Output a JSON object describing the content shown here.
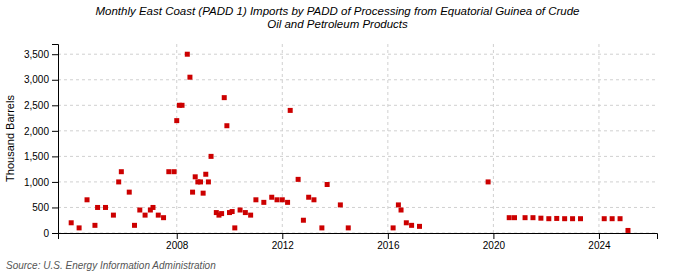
{
  "chart_data": {
    "type": "scatter",
    "title": "Monthly East Coast (PADD 1) Imports by PADD of Processing from Equatorial Guinea of Crude\nOil and Petroleum Products",
    "ylabel": "Thousand Barrels",
    "source": "Source: U.S. Energy Information Administration",
    "color": "#cc0000",
    "marker": "square",
    "grid": true,
    "xlim": [
      2003.5,
      2026.2
    ],
    "ylim": [
      0,
      3700
    ],
    "xticks": [
      2008,
      2012,
      2016,
      2020,
      2024
    ],
    "yticks": [
      0,
      500,
      {
        "value": 1000,
        "label": "1,000"
      },
      {
        "value": 1500,
        "label": "1,500"
      },
      {
        "value": 2000,
        "label": "2,000"
      },
      {
        "value": 2500,
        "label": "2,500"
      },
      {
        "value": 3000,
        "label": "3,000"
      },
      {
        "value": 3500,
        "label": "3,500"
      }
    ],
    "x": [
      2004.0,
      2004.3,
      2004.6,
      2004.9,
      2005.0,
      2005.3,
      2005.6,
      2005.8,
      2005.9,
      2006.2,
      2006.4,
      2006.6,
      2006.8,
      2007.0,
      2007.1,
      2007.3,
      2007.5,
      2007.7,
      2007.9,
      2008.0,
      2008.1,
      2008.2,
      2008.4,
      2008.5,
      2008.6,
      2008.7,
      2008.8,
      2008.9,
      2009.0,
      2009.1,
      2009.2,
      2009.3,
      2009.5,
      2009.6,
      2009.7,
      2009.8,
      2009.9,
      2010.0,
      2010.1,
      2010.2,
      2010.4,
      2010.6,
      2010.8,
      2011.0,
      2011.3,
      2011.6,
      2011.8,
      2012.0,
      2012.2,
      2012.3,
      2012.6,
      2012.8,
      2013.0,
      2013.2,
      2013.5,
      2013.7,
      2014.2,
      2014.5,
      2016.2,
      2016.4,
      2016.5,
      2016.7,
      2016.9,
      2017.2,
      2019.8,
      2020.6,
      2020.8,
      2021.2,
      2021.5,
      2021.8,
      2022.1,
      2022.4,
      2022.7,
      2023.0,
      2023.3,
      2024.2,
      2024.5,
      2024.8,
      2025.1
    ],
    "values": [
      200,
      100,
      650,
      150,
      500,
      500,
      350,
      1000,
      1200,
      800,
      150,
      450,
      350,
      450,
      500,
      350,
      300,
      1200,
      1200,
      2200,
      2500,
      2500,
      3500,
      3050,
      800,
      1100,
      1000,
      1000,
      780,
      1150,
      1000,
      1500,
      400,
      350,
      380,
      2650,
      2100,
      400,
      420,
      100,
      450,
      400,
      350,
      650,
      600,
      700,
      650,
      650,
      600,
      2400,
      1050,
      250,
      700,
      650,
      100,
      950,
      550,
      100,
      100,
      550,
      450,
      200,
      150,
      130,
      1000,
      300,
      300,
      300,
      300,
      290,
      280,
      285,
      280,
      280,
      280,
      280,
      280,
      280,
      50
    ]
  }
}
